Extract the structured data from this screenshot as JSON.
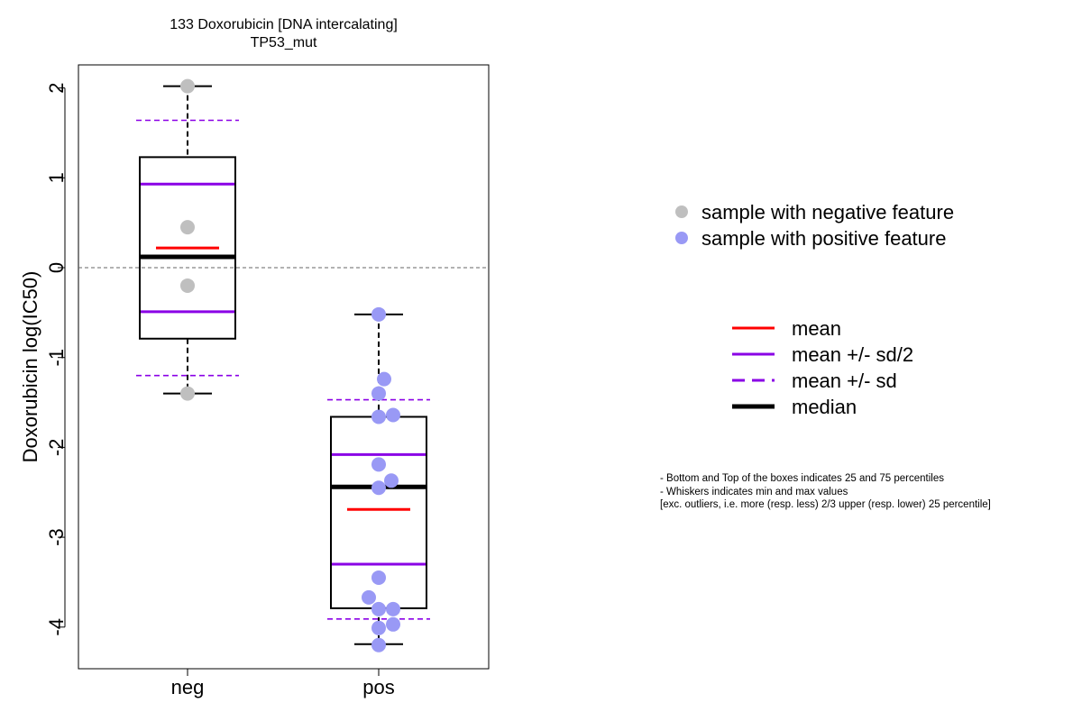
{
  "title": "133 Doxorubicin [DNA intercalating]",
  "subtitle": "TP53_mut",
  "chart_data": {
    "type": "box",
    "ylabel": "Doxorubicin log(IC50)",
    "xlabel": "",
    "categories": [
      "neg",
      "pos"
    ],
    "ylim": [
      -4.45,
      2.27
    ],
    "yticks": [
      2,
      1,
      0,
      -1,
      -2,
      -3,
      -4
    ],
    "reference_line": 0,
    "groups": [
      {
        "name": "neg",
        "min": -1.4,
        "q1": -0.79,
        "median": 0.12,
        "q3": 1.23,
        "max": 2.02,
        "mean": 0.22,
        "mean_minus_half_sd": -0.49,
        "mean_plus_half_sd": 0.93,
        "mean_minus_sd": -1.2,
        "mean_plus_sd": 1.64,
        "point_color": "#bfbfbf",
        "points": [
          {
            "jitter": 0.0,
            "y": 2.02
          },
          {
            "jitter": 0.0,
            "y": 0.45
          },
          {
            "jitter": 0.0,
            "y": -0.2
          },
          {
            "jitter": 0.0,
            "y": -1.4
          }
        ]
      },
      {
        "name": "pos",
        "min": -4.19,
        "q1": -3.79,
        "median": -2.44,
        "q3": -1.66,
        "max": -0.52,
        "mean": -2.69,
        "mean_minus_half_sd": -3.3,
        "mean_plus_half_sd": -2.08,
        "mean_minus_sd": -3.91,
        "mean_plus_sd": -1.47,
        "point_color": "#9999f5",
        "points": [
          {
            "jitter": 0.0,
            "y": -0.52
          },
          {
            "jitter": 0.06,
            "y": -1.24
          },
          {
            "jitter": 0.0,
            "y": -1.4
          },
          {
            "jitter": 0.0,
            "y": -1.66
          },
          {
            "jitter": 0.16,
            "y": -1.64
          },
          {
            "jitter": 0.0,
            "y": -2.19
          },
          {
            "jitter": 0.14,
            "y": -2.37
          },
          {
            "jitter": 0.0,
            "y": -2.45
          },
          {
            "jitter": 0.0,
            "y": -3.45
          },
          {
            "jitter": -0.11,
            "y": -3.67
          },
          {
            "jitter": 0.0,
            "y": -3.8
          },
          {
            "jitter": 0.16,
            "y": -3.8
          },
          {
            "jitter": 0.16,
            "y": -3.97
          },
          {
            "jitter": 0.0,
            "y": -4.01
          },
          {
            "jitter": 0.0,
            "y": -4.2
          }
        ]
      }
    ],
    "colors": {
      "mean": "#ff0000",
      "sd": "#8a00e6",
      "median": "#000000",
      "reference": "#666666"
    }
  },
  "legend": {
    "points": [
      {
        "label": "sample with negative feature",
        "color": "#bfbfbf"
      },
      {
        "label": "sample with positive feature",
        "color": "#9999f5"
      }
    ],
    "lines": [
      {
        "label": "mean",
        "color": "#ff0000",
        "style": "solid",
        "weight": "normal"
      },
      {
        "label": "mean +/- sd/2",
        "color": "#8a00e6",
        "style": "solid",
        "weight": "normal"
      },
      {
        "label": "mean +/- sd",
        "color": "#8a00e6",
        "style": "dashed",
        "weight": "normal"
      },
      {
        "label": "median",
        "color": "#000000",
        "style": "solid",
        "weight": "bold"
      }
    ]
  },
  "notes": [
    "- Bottom and Top of the boxes indicates 25 and 75 percentiles",
    "- Whiskers indicates min and max values",
    "[exc. outliers, i.e. more (resp. less) 2/3 upper (resp. lower) 25 percentile]"
  ]
}
